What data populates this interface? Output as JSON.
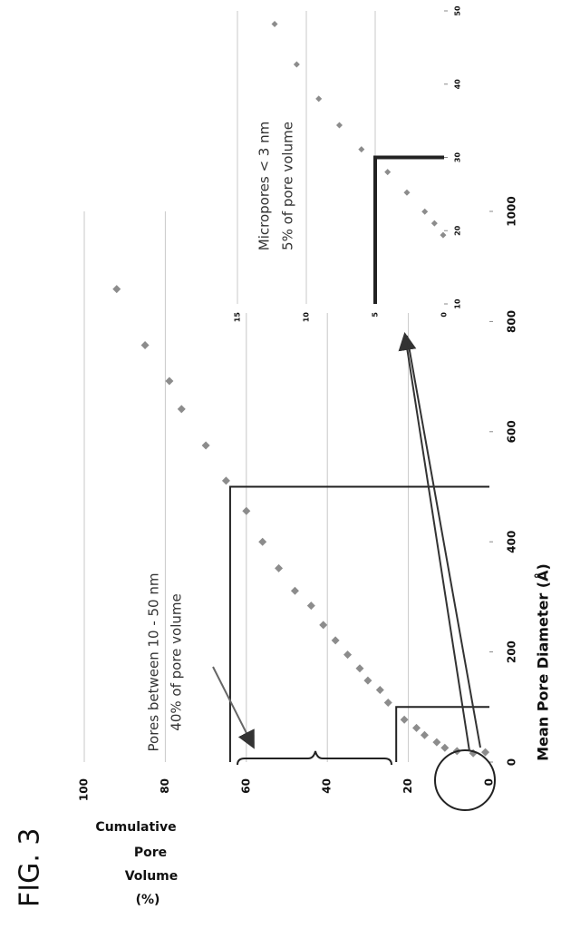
{
  "figure_label": "FIG. 3",
  "chart_data": [
    {
      "type": "scatter",
      "x_label": "Mean Pore Diameter (Å)",
      "y_label": [
        "Cumulative",
        "Pore",
        "Volume",
        "(%)"
      ],
      "x": [
        859,
        757,
        692,
        641,
        575,
        511,
        456,
        400,
        352,
        311,
        284,
        249,
        221,
        195,
        170,
        148,
        131,
        108,
        77,
        62,
        49,
        36,
        26,
        20,
        16,
        18
      ],
      "values": [
        92,
        85,
        79,
        76,
        70,
        65,
        60,
        56,
        52,
        48,
        44,
        41,
        38,
        35,
        32,
        30,
        27,
        25,
        21,
        18,
        16,
        13,
        11,
        8,
        4,
        1
      ],
      "color": "#8c8c8c",
      "xlim": [
        0,
        1000
      ],
      "ylim": [
        0,
        100
      ],
      "xticks": [
        0,
        200,
        400,
        600,
        800,
        1000
      ],
      "yticks": [
        0,
        20,
        40,
        60,
        80,
        100
      ],
      "grid": true,
      "regions": [
        {
          "x": 500,
          "y": 64
        },
        {
          "x": 100,
          "y": 23
        }
      ],
      "annotation": [
        "Pores between 10 - 50 nm",
        "40% of pore volume"
      ]
    },
    {
      "type": "scatter",
      "x": [
        19.4,
        21,
        22.6,
        25.2,
        28,
        31.1,
        34.4,
        38,
        42.7,
        48.2
      ],
      "values": [
        0.07,
        0.7,
        1.4,
        2.7,
        4.1,
        6,
        7.6,
        9.1,
        10.7,
        12.3
      ],
      "color": "#8c8c8c",
      "xlim": [
        10,
        50
      ],
      "ylim": [
        0,
        15
      ],
      "xticks": [
        10,
        20,
        30,
        40,
        50
      ],
      "yticks": [
        0,
        5,
        10,
        15
      ],
      "grid": true,
      "regions": [
        {
          "x": 30,
          "y": 5
        }
      ],
      "annotation": [
        "Micropores < 3 nm",
        "5% of pore volume"
      ]
    }
  ]
}
